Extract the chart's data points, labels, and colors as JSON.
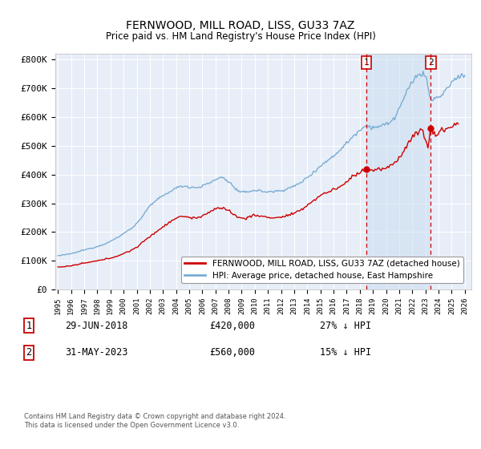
{
  "title": "FERNWOOD, MILL ROAD, LISS, GU33 7AZ",
  "subtitle": "Price paid vs. HM Land Registry's House Price Index (HPI)",
  "hpi_color": "#7aadd4",
  "price_color": "#cc0000",
  "hpi_fill_color": "#ddeeff",
  "marker1_date_x": 2018.49,
  "marker1_price": 420000,
  "marker2_date_x": 2023.41,
  "marker2_price": 560000,
  "legend_entries": [
    "FERNWOOD, MILL ROAD, LISS, GU33 7AZ (detached house)",
    "HPI: Average price, detached house, East Hampshire"
  ],
  "annotation1": [
    "1",
    "29-JUN-2018",
    "£420,000",
    "27% ↓ HPI"
  ],
  "annotation2": [
    "2",
    "31-MAY-2023",
    "£560,000",
    "15% ↓ HPI"
  ],
  "footnote": "Contains HM Land Registry data © Crown copyright and database right 2024.\nThis data is licensed under the Open Government Licence v3.0.",
  "ylim": [
    0,
    820000
  ],
  "xlim_start": 1994.8,
  "xlim_end": 2026.5,
  "background_color": "#e8eef8"
}
